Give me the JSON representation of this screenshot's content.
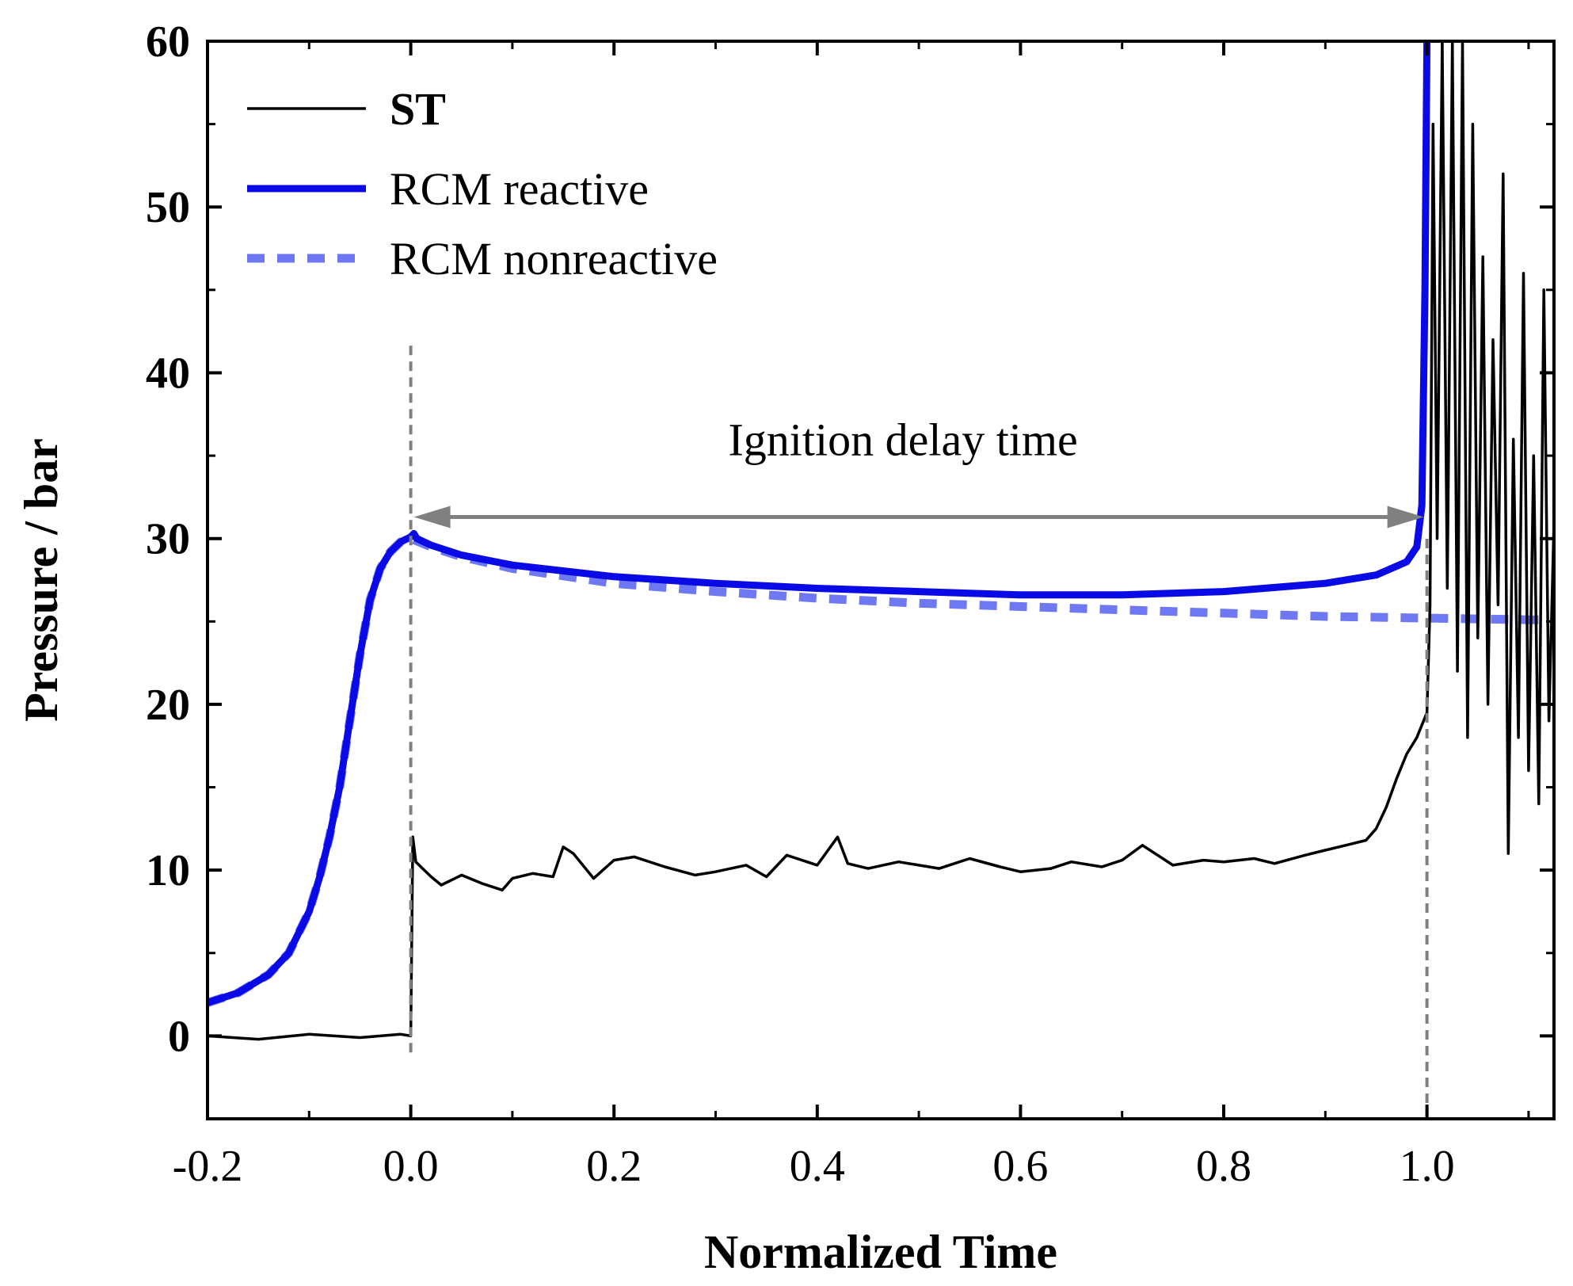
{
  "chart_data": {
    "type": "line",
    "xlabel": "Normalized Time",
    "ylabel": "Pressure / bar",
    "xlim": [
      -0.2,
      1.125
    ],
    "ylim": [
      -5,
      60
    ],
    "x_ticks": [
      "-0.2",
      "0.0",
      "0.2",
      "0.4",
      "0.6",
      "0.8",
      "1.0"
    ],
    "x_tick_values": [
      -0.2,
      0.0,
      0.2,
      0.4,
      0.6,
      0.8,
      1.0
    ],
    "y_ticks": [
      "0",
      "10",
      "20",
      "30",
      "40",
      "50",
      "60"
    ],
    "y_tick_values": [
      0,
      10,
      20,
      30,
      40,
      50,
      60
    ],
    "grid": false,
    "legend_position": "top-left",
    "annotation": {
      "text": "Ignition delay time",
      "arrow_from": [
        0.0,
        31.3
      ],
      "arrow_to": [
        1.0,
        31.3
      ],
      "arrow_y": 31.3
    },
    "markers": [
      {
        "x": 0.0,
        "y_from": -1,
        "y_to": 42
      },
      {
        "x": 1.0,
        "y_from": -5,
        "y_to": 30
      }
    ],
    "series": [
      {
        "name": "ST",
        "style": "solid-thin",
        "color": "#000000",
        "x": [
          -0.2,
          -0.15,
          -0.1,
          -0.05,
          -0.01,
          0.0,
          0.002,
          0.005,
          0.01,
          0.02,
          0.03,
          0.05,
          0.07,
          0.09,
          0.1,
          0.12,
          0.14,
          0.15,
          0.16,
          0.18,
          0.2,
          0.22,
          0.25,
          0.28,
          0.3,
          0.33,
          0.35,
          0.37,
          0.4,
          0.42,
          0.43,
          0.45,
          0.48,
          0.5,
          0.52,
          0.55,
          0.58,
          0.6,
          0.63,
          0.65,
          0.68,
          0.7,
          0.72,
          0.75,
          0.78,
          0.8,
          0.83,
          0.85,
          0.88,
          0.9,
          0.92,
          0.94,
          0.95,
          0.96,
          0.97,
          0.98,
          0.99,
          1.0,
          1.003,
          1.006,
          1.01,
          1.015,
          1.02,
          1.025,
          1.03,
          1.035,
          1.04,
          1.045,
          1.05,
          1.055,
          1.06,
          1.065,
          1.07,
          1.075,
          1.08,
          1.085,
          1.09,
          1.095,
          1.1,
          1.105,
          1.11,
          1.115,
          1.12,
          1.125
        ],
        "y": [
          0.0,
          -0.2,
          0.1,
          -0.1,
          0.1,
          0.0,
          12.0,
          10.5,
          10.2,
          9.6,
          9.1,
          9.7,
          9.2,
          8.8,
          9.5,
          9.8,
          9.6,
          11.4,
          11.0,
          9.5,
          10.6,
          10.8,
          10.2,
          9.7,
          9.9,
          10.3,
          9.6,
          10.9,
          10.3,
          12.0,
          10.4,
          10.1,
          10.5,
          10.3,
          10.1,
          10.7,
          10.2,
          9.9,
          10.1,
          10.5,
          10.2,
          10.6,
          11.5,
          10.3,
          10.6,
          10.5,
          10.7,
          10.4,
          10.9,
          11.2,
          11.5,
          11.8,
          12.5,
          13.8,
          15.5,
          17.0,
          18.0,
          19.5,
          26.0,
          55.0,
          30.0,
          60.0,
          27.0,
          60.0,
          22.0,
          60.0,
          18.0,
          55.0,
          24.0,
          47.0,
          20.0,
          42.0,
          26.0,
          52.0,
          11.0,
          36.0,
          18.0,
          46.0,
          16.0,
          35.0,
          14.0,
          45.0,
          19.0,
          31.0
        ]
      },
      {
        "name": "RCM reactive",
        "style": "solid-thick",
        "color": "#0a0ae6",
        "x": [
          -0.2,
          -0.17,
          -0.14,
          -0.12,
          -0.1,
          -0.09,
          -0.08,
          -0.07,
          -0.06,
          -0.05,
          -0.04,
          -0.03,
          -0.02,
          -0.01,
          0.0,
          0.003,
          0.006,
          0.02,
          0.05,
          0.1,
          0.2,
          0.3,
          0.4,
          0.5,
          0.6,
          0.7,
          0.8,
          0.9,
          0.95,
          0.98,
          0.99,
          0.995,
          0.998,
          1.0
        ],
        "y": [
          2.0,
          2.6,
          3.7,
          5.0,
          7.5,
          9.5,
          12.0,
          15.0,
          19.0,
          23.0,
          26.3,
          28.2,
          29.2,
          29.8,
          30.1,
          30.3,
          30.0,
          29.6,
          29.0,
          28.4,
          27.7,
          27.3,
          27.0,
          26.8,
          26.6,
          26.6,
          26.8,
          27.3,
          27.8,
          28.6,
          29.5,
          32.0,
          45.0,
          60.0
        ]
      },
      {
        "name": "RCM nonreactive",
        "style": "dashed",
        "color": "#5560f0",
        "x": [
          -0.2,
          -0.17,
          -0.14,
          -0.12,
          -0.1,
          -0.09,
          -0.08,
          -0.07,
          -0.06,
          -0.05,
          -0.04,
          -0.03,
          -0.02,
          -0.01,
          0.0,
          0.02,
          0.05,
          0.1,
          0.2,
          0.3,
          0.4,
          0.5,
          0.6,
          0.7,
          0.8,
          0.9,
          1.0,
          1.1,
          1.125
        ],
        "y": [
          2.0,
          2.6,
          3.7,
          5.0,
          7.5,
          9.5,
          12.0,
          15.0,
          19.0,
          23.0,
          26.3,
          28.2,
          29.2,
          29.8,
          30.0,
          29.5,
          28.9,
          28.2,
          27.3,
          26.8,
          26.4,
          26.1,
          25.9,
          25.7,
          25.5,
          25.3,
          25.2,
          25.1,
          25.1
        ]
      }
    ]
  },
  "colors": {
    "axis": "#000000",
    "marker_line": "#808080",
    "arrow": "#808080"
  }
}
